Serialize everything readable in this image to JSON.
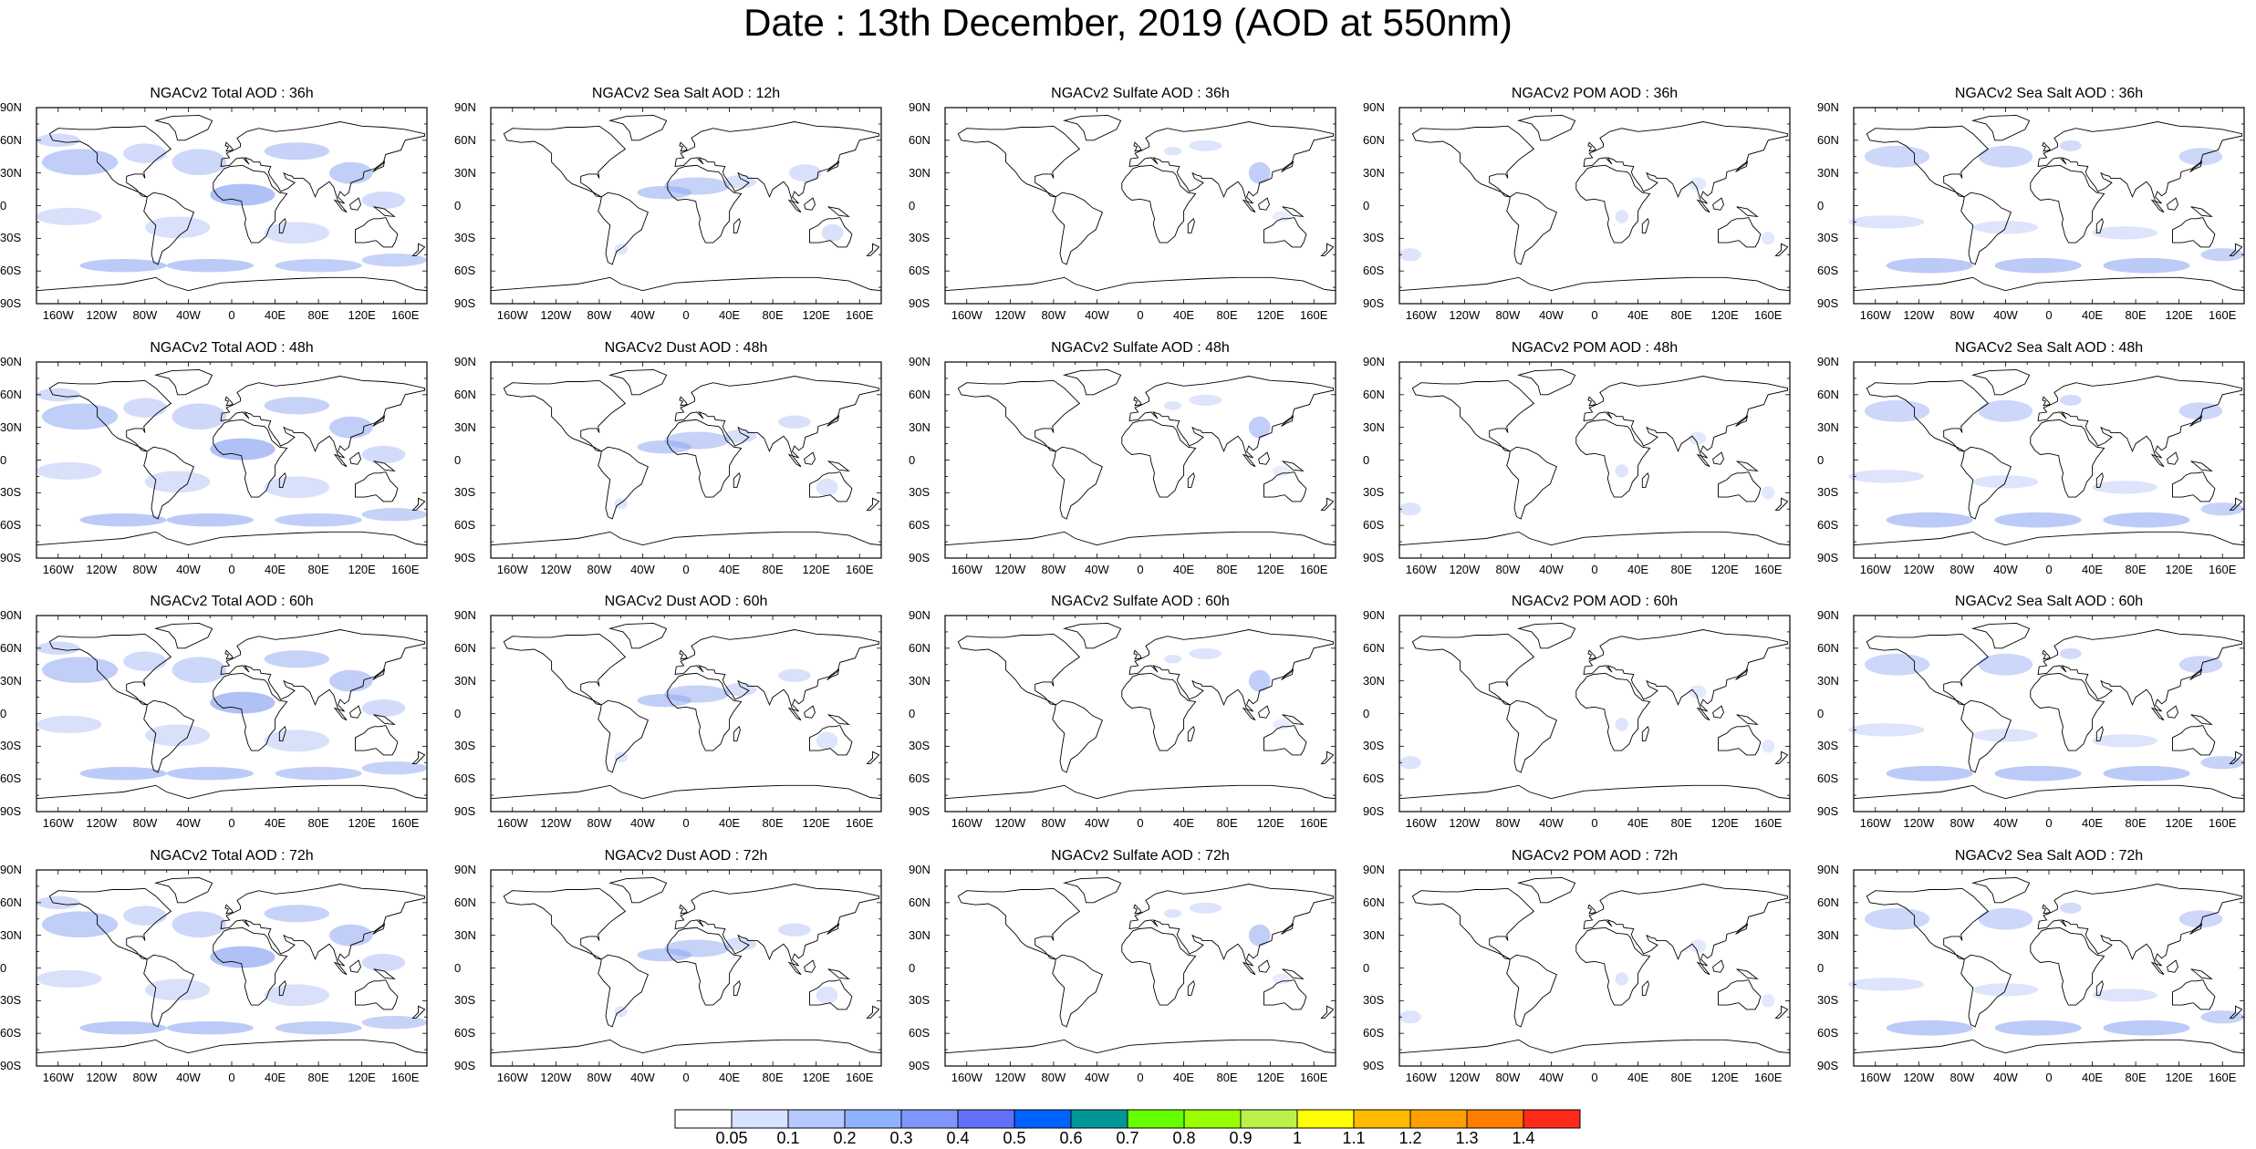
{
  "title": "Date : 13th December, 2019 (AOD at 550nm)",
  "lat_ticks": [
    "90N",
    "60N",
    "30N",
    "0",
    "30S",
    "60S",
    "90S"
  ],
  "lon_ticks": [
    "160W",
    "120W",
    "80W",
    "40W",
    "0",
    "40E",
    "80E",
    "120E",
    "160E"
  ],
  "panel_rows": [
    [
      "NGACv2 Total AOD : 36h",
      "NGACv2 Sea Salt  AOD : 12h",
      "NGACv2 Sulfate AOD : 36h",
      "NGACv2 POM AOD : 36h",
      "NGACv2 Sea Salt AOD : 36h"
    ],
    [
      "NGACv2 Total AOD : 48h",
      "NGACv2 Dust AOD : 48h",
      "NGACv2 Sulfate AOD : 48h",
      "NGACv2 POM AOD : 48h",
      "NGACv2 Sea Salt AOD : 48h"
    ],
    [
      "NGACv2 Total AOD : 60h",
      "NGACv2 Dust AOD : 60h",
      "NGACv2 Sulfate AOD : 60h",
      "NGACv2 POM AOD : 60h",
      "NGACv2 Sea Salt AOD : 60h"
    ],
    [
      "NGACv2 Total AOD : 72h",
      "NGACv2 Dust AOD : 72h",
      "NGACv2 Sulfate AOD : 72h",
      "NGACv2 POM AOD : 72h",
      "NGACv2 Sea Salt  AOD : 72h"
    ]
  ],
  "colorbar": {
    "labels": [
      "0.05",
      "0.1",
      "0.2",
      "0.3",
      "0.4",
      "0.5",
      "0.6",
      "0.7",
      "0.8",
      "0.9",
      "1",
      "1.1",
      "1.2",
      "1.3",
      "1.4"
    ],
    "colors": [
      "#ffffff",
      "#d6e2ff",
      "#b5c9ff",
      "#8eb2ff",
      "#7f96ff",
      "#6370f8",
      "#0063ff",
      "#009696",
      "#66ff00",
      "#99ff00",
      "#bbf14a",
      "#ffff00",
      "#ffbb00",
      "#ffa000",
      "#ff7d00",
      "#ff2a1a"
    ]
  },
  "field_color": "#8ea6f2"
}
